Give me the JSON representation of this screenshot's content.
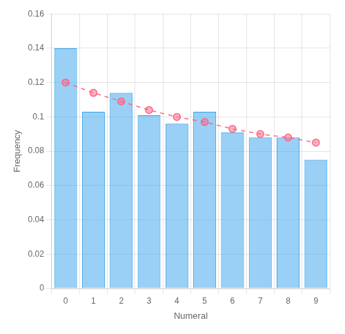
{
  "chart_data": {
    "type": "bar",
    "xlabel": "Numeral",
    "ylabel": "Frequency",
    "categories": [
      "0",
      "1",
      "2",
      "3",
      "4",
      "5",
      "6",
      "7",
      "8",
      "9"
    ],
    "series": [
      {
        "type": "bar",
        "values": [
          0.14,
          0.103,
          0.114,
          0.101,
          0.096,
          0.103,
          0.091,
          0.088,
          0.088,
          0.075
        ]
      },
      {
        "type": "line",
        "line_style": "dashed",
        "marker": "circle",
        "values": [
          0.12,
          0.114,
          0.109,
          0.104,
          0.1,
          0.097,
          0.093,
          0.09,
          0.088,
          0.085
        ]
      }
    ],
    "ylim": [
      0,
      0.16
    ],
    "yticks": [
      0,
      0.02,
      0.04,
      0.06,
      0.08,
      0.1,
      0.12,
      0.14,
      0.16
    ],
    "grid": true
  }
}
